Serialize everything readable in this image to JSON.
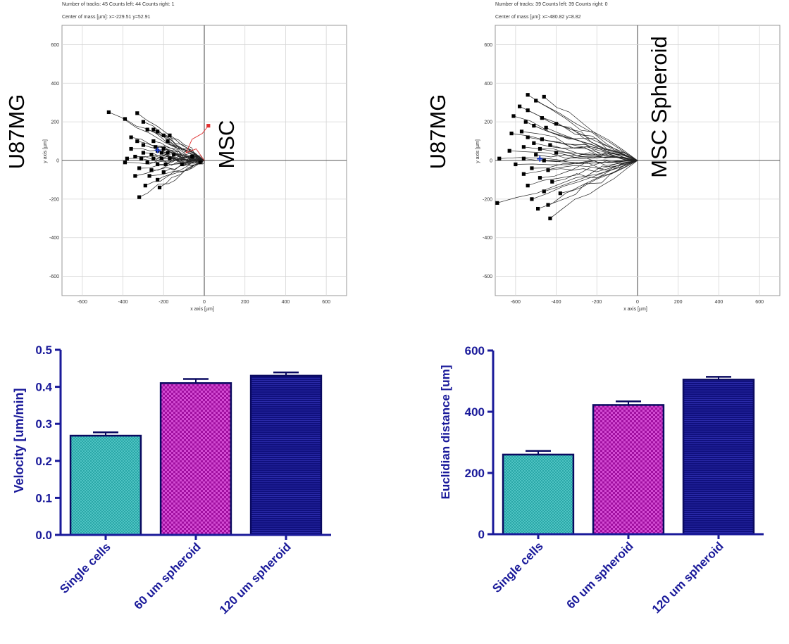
{
  "chart_data": [
    {
      "type": "scatter",
      "panel": "top-left",
      "info_line1": "Number of tracks: 45  Counts left: 44  Counts right: 1",
      "info_line2": "Center of mass [µm]: x=-229.51 y=52.91",
      "xlabel": "x axis [µm]",
      "ylabel": "y axis [µm]",
      "xlim": [
        -700,
        700
      ],
      "ylim": [
        -700,
        700
      ],
      "xticks": [
        -600,
        -400,
        -200,
        0,
        200,
        400,
        600
      ],
      "yticks": [
        600,
        400,
        200,
        0,
        -200,
        -400,
        -600
      ],
      "left_label": "U87MG",
      "right_label": "MSC",
      "center_of_mass": [
        -229.51,
        52.91
      ],
      "highlight_end": [
        20,
        180
      ],
      "track_endpoints": [
        [
          -470,
          250
        ],
        [
          -390,
          215
        ],
        [
          -330,
          245
        ],
        [
          -300,
          200
        ],
        [
          -280,
          160
        ],
        [
          -250,
          160
        ],
        [
          -230,
          150
        ],
        [
          -200,
          130
        ],
        [
          -170,
          130
        ],
        [
          -360,
          120
        ],
        [
          -330,
          100
        ],
        [
          -250,
          100
        ],
        [
          -180,
          100
        ],
        [
          -300,
          80
        ],
        [
          -240,
          70
        ],
        [
          -360,
          60
        ],
        [
          -230,
          50
        ],
        [
          -200,
          60
        ],
        [
          -300,
          40
        ],
        [
          -260,
          30
        ],
        [
          -210,
          40
        ],
        [
          -180,
          40
        ],
        [
          -380,
          10
        ],
        [
          -340,
          20
        ],
        [
          -310,
          10
        ],
        [
          -250,
          10
        ],
        [
          -210,
          10
        ],
        [
          -170,
          10
        ],
        [
          -390,
          -10
        ],
        [
          -280,
          -10
        ],
        [
          -230,
          -20
        ],
        [
          -190,
          -20
        ],
        [
          -320,
          -40
        ],
        [
          -260,
          -50
        ],
        [
          -200,
          -60
        ],
        [
          -340,
          -80
        ],
        [
          -270,
          -80
        ],
        [
          -230,
          -100
        ],
        [
          -290,
          -130
        ],
        [
          -220,
          -140
        ],
        [
          -320,
          -190
        ],
        [
          -150,
          30
        ],
        [
          -110,
          -20
        ],
        [
          -60,
          20
        ],
        [
          -20,
          -10
        ]
      ]
    },
    {
      "type": "scatter",
      "panel": "top-right",
      "info_line1": "Number of tracks: 39  Counts left: 39  Counts right: 0",
      "info_line2": "Center of mass [µm]: x=-480.82 y=8.82",
      "xlabel": "x axis [µm]",
      "ylabel": "y axis [µm]",
      "xlim": [
        -700,
        700
      ],
      "ylim": [
        -700,
        700
      ],
      "xticks": [
        -600,
        -400,
        -200,
        0,
        200,
        400,
        600
      ],
      "yticks": [
        600,
        400,
        200,
        0,
        -200,
        -400,
        -600
      ],
      "left_label": "U87MG",
      "right_label": "MSC Spheroid",
      "center_of_mass": [
        -480.82,
        8.82
      ],
      "track_endpoints": [
        [
          -540,
          340
        ],
        [
          -460,
          330
        ],
        [
          -500,
          310
        ],
        [
          -580,
          280
        ],
        [
          -540,
          260
        ],
        [
          -610,
          230
        ],
        [
          -470,
          220
        ],
        [
          -550,
          200
        ],
        [
          -400,
          190
        ],
        [
          -510,
          180
        ],
        [
          -450,
          170
        ],
        [
          -570,
          150
        ],
        [
          -620,
          140
        ],
        [
          -540,
          120
        ],
        [
          -470,
          110
        ],
        [
          -510,
          90
        ],
        [
          -430,
          80
        ],
        [
          -560,
          70
        ],
        [
          -480,
          60
        ],
        [
          -630,
          50
        ],
        [
          -400,
          40
        ],
        [
          -500,
          30
        ],
        [
          -680,
          10
        ],
        [
          -560,
          10
        ],
        [
          -460,
          0
        ],
        [
          -600,
          -20
        ],
        [
          -520,
          -40
        ],
        [
          -440,
          -50
        ],
        [
          -560,
          -70
        ],
        [
          -480,
          -90
        ],
        [
          -420,
          -110
        ],
        [
          -540,
          -130
        ],
        [
          -460,
          -160
        ],
        [
          -380,
          -170
        ],
        [
          -520,
          -200
        ],
        [
          -440,
          -230
        ],
        [
          -490,
          -250
        ],
        [
          -430,
          -300
        ],
        [
          -690,
          -220
        ]
      ]
    },
    {
      "type": "bar",
      "panel": "bottom-left",
      "categories": [
        "Single cells",
        "60 um spheroid",
        "120 um spheroid"
      ],
      "values": [
        0.268,
        0.41,
        0.43
      ],
      "errors": [
        0.009,
        0.011,
        0.009
      ],
      "colors": [
        "#2aa7a7",
        "#b01cb0",
        "#14148c"
      ],
      "ylabel": "Velocity [um/min]",
      "ylim": [
        0,
        0.5
      ],
      "yticks": [
        0.0,
        0.1,
        0.2,
        0.3,
        0.4,
        0.5
      ],
      "ytick_labels": [
        "0.0",
        "0.1",
        "0.2",
        "0.3",
        "0.4",
        "0.5"
      ]
    },
    {
      "type": "bar",
      "panel": "bottom-right",
      "categories": [
        "Single cells",
        "60 um spheroid",
        "120 um spheroid"
      ],
      "values": [
        260,
        422,
        505
      ],
      "errors": [
        12,
        12,
        9
      ],
      "colors": [
        "#2aa7a7",
        "#b01cb0",
        "#14148c"
      ],
      "ylabel": "Euclidian distance [um]",
      "ylim": [
        0,
        600
      ],
      "yticks": [
        0,
        200,
        400,
        600
      ],
      "ytick_labels": [
        "0",
        "200",
        "400",
        "600"
      ]
    }
  ]
}
